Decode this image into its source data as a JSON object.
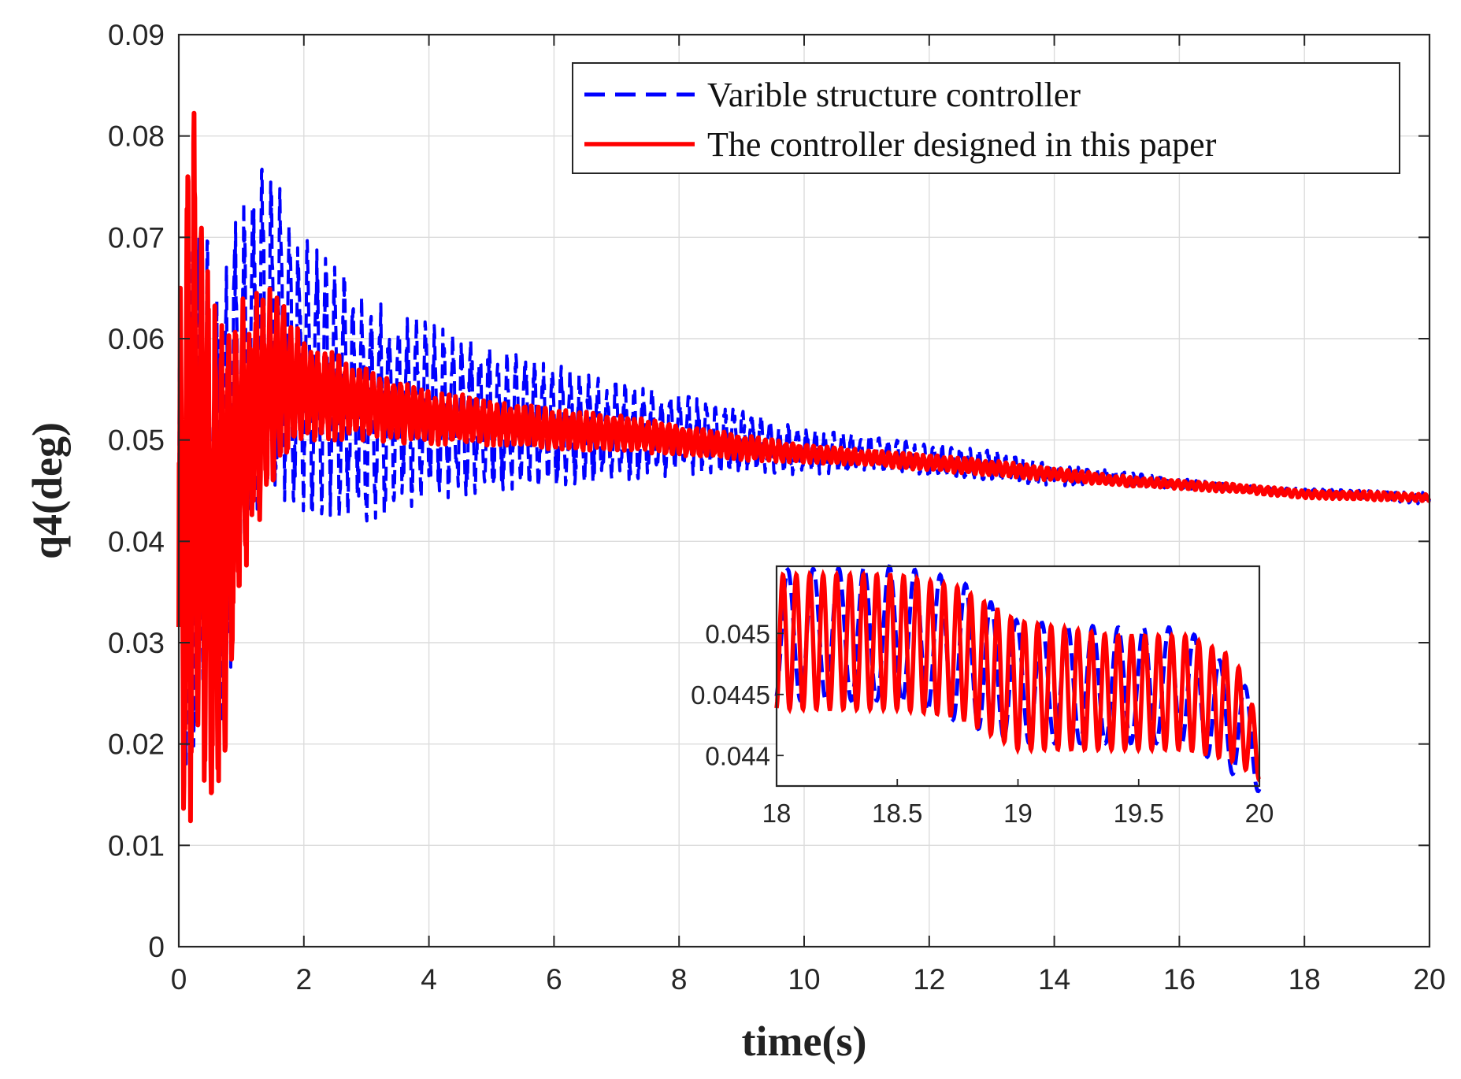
{
  "chart_data": {
    "type": "line",
    "title": "",
    "xlabel": "time(s)",
    "ylabel": "q4(deg)",
    "xlim": [
      0,
      20
    ],
    "ylim": [
      0,
      0.09
    ],
    "grid": true,
    "xticks": [
      0,
      2,
      4,
      6,
      8,
      10,
      12,
      14,
      16,
      18,
      20
    ],
    "yticks": [
      0,
      0.01,
      0.02,
      0.03,
      0.04,
      0.05,
      0.06,
      0.07,
      0.08,
      0.09
    ],
    "xtick_labels": [
      "0",
      "2",
      "4",
      "6",
      "8",
      "10",
      "12",
      "14",
      "16",
      "18",
      "20"
    ],
    "ytick_labels": [
      "0",
      "0.01",
      "0.02",
      "0.03",
      "0.04",
      "0.05",
      "0.06",
      "0.07",
      "0.08",
      "0.09"
    ],
    "legend_position": "top-right",
    "series": [
      {
        "name": "Varible structure controller",
        "color": "#0000ff",
        "style": "dashed",
        "steady_value": 0.0445,
        "envelope": {
          "t": [
            0,
            0.2,
            0.4,
            0.7,
            1.0,
            1.4,
            2.0,
            3.0,
            4.0,
            5.0,
            6.0,
            7.0,
            8.0,
            9.0,
            10.0,
            11.0,
            12.0,
            13.0,
            14.0,
            15.0,
            16.0,
            17.0,
            18.0,
            19.0,
            20.0
          ],
          "upper": [
            0.062,
            0.07,
            0.07,
            0.068,
            0.073,
            0.0775,
            0.07,
            0.064,
            0.0615,
            0.059,
            0.0575,
            0.0555,
            0.0545,
            0.053,
            0.051,
            0.0505,
            0.0495,
            0.049,
            0.0475,
            0.047,
            0.0462,
            0.0455,
            0.0452,
            0.045,
            0.0448
          ],
          "lower": [
            0.012,
            0.02,
            0.019,
            0.018,
            0.04,
            0.045,
            0.043,
            0.042,
            0.044,
            0.045,
            0.0455,
            0.046,
            0.0465,
            0.047,
            0.0465,
            0.047,
            0.0465,
            0.046,
            0.0455,
            0.0455,
            0.0452,
            0.045,
            0.0445,
            0.0442,
            0.0436
          ]
        }
      },
      {
        "name": "The controller designed in this paper",
        "color": "#ff0000",
        "style": "solid",
        "steady_value": 0.0445,
        "envelope": {
          "t": [
            0,
            0.2,
            0.3,
            0.5,
            0.7,
            1.0,
            1.5,
            2.0,
            3.0,
            4.0,
            5.0,
            6.0,
            7.0,
            8.0,
            9.0,
            10.0,
            11.0,
            12.0,
            13.0,
            14.0,
            15.0,
            16.0,
            17.0,
            18.0,
            19.0,
            20.0
          ],
          "upper": [
            0.062,
            0.086,
            0.078,
            0.064,
            0.062,
            0.064,
            0.065,
            0.06,
            0.057,
            0.055,
            0.054,
            0.053,
            0.0525,
            0.0515,
            0.0505,
            0.0495,
            0.049,
            0.0485,
            0.048,
            0.0472,
            0.0465,
            0.046,
            0.0456,
            0.045,
            0.0449,
            0.0446
          ],
          "lower": [
            0.009,
            0.01,
            0.018,
            0.015,
            0.017,
            0.036,
            0.046,
            0.05,
            0.05,
            0.0495,
            0.0495,
            0.049,
            0.049,
            0.0485,
            0.048,
            0.0478,
            0.0475,
            0.047,
            0.0465,
            0.046,
            0.0455,
            0.0452,
            0.0448,
            0.0443,
            0.0441,
            0.044
          ]
        }
      }
    ],
    "inset": {
      "xlim": [
        18,
        20
      ],
      "ylim": [
        0.04375,
        0.04555
      ],
      "xticks": [
        18,
        18.5,
        19,
        19.5,
        20
      ],
      "yticks": [
        0.044,
        0.0445,
        0.045
      ],
      "xtick_labels": [
        "18",
        "18.5",
        "19",
        "19.5",
        "20"
      ],
      "ytick_labels": [
        "0.044",
        "0.0445",
        "0.045"
      ],
      "red_cycles": 36,
      "blue_cycles": 19,
      "red_envelope": {
        "t": [
          18,
          18.5,
          18.75,
          19,
          19.4,
          19.7,
          19.9,
          20
        ],
        "upper": [
          0.04548,
          0.04548,
          0.04538,
          0.0451,
          0.04498,
          0.04498,
          0.0448,
          0.04425
        ],
        "lower": [
          0.04438,
          0.04438,
          0.04432,
          0.04405,
          0.04405,
          0.04405,
          0.04395,
          0.0438
        ]
      },
      "blue_envelope": {
        "t": [
          18,
          18.5,
          18.75,
          19,
          19.4,
          19.7,
          20
        ],
        "upper": [
          0.04552,
          0.04555,
          0.04545,
          0.0451,
          0.04505,
          0.04505,
          0.04445
        ],
        "lower": [
          0.04445,
          0.04445,
          0.04428,
          0.0441,
          0.0441,
          0.0441,
          0.0437
        ]
      }
    }
  }
}
